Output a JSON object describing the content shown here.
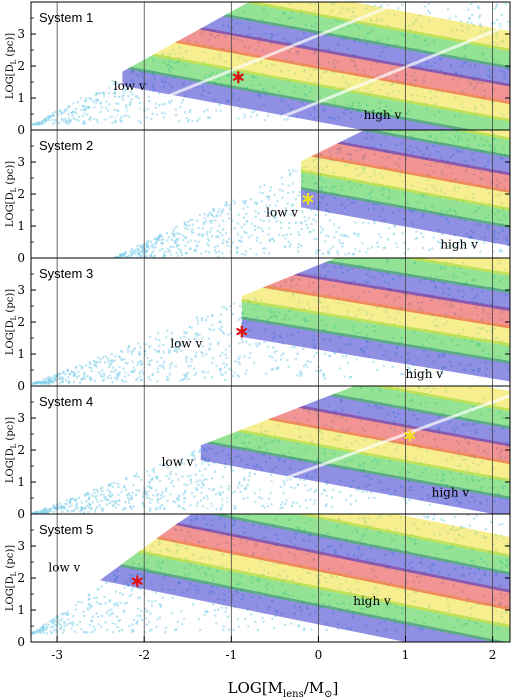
{
  "chart_data": {
    "type": "scatter",
    "xlabel_main": "LOG[M",
    "xlabel_sub": "lens",
    "xlabel_tail": "/M",
    "xlabel_sun": "⊙",
    "xlabel_close": "]",
    "ylabel_main": "LOG[D",
    "ylabel_sub": "L",
    "ylabel_unit": " (pc)]",
    "xlim": [
      -3.3,
      2.2
    ],
    "ylim": [
      0,
      4
    ],
    "x_ticks": [
      "-3",
      "-2",
      "-1",
      "0",
      "1",
      "2"
    ],
    "x_tick_values": [
      -3,
      -2,
      -1,
      0,
      1,
      2
    ],
    "y_ticks": [
      "0",
      "1",
      "2",
      "3"
    ],
    "y_tick_values": [
      0,
      1,
      2,
      3
    ],
    "band_colors": [
      "#1f1fc8",
      "#2ac82a",
      "#f0e020",
      "#e82a2a"
    ],
    "background_color": "#7fd0ea",
    "panels": [
      {
        "title": "System 1",
        "star": {
          "x": -0.92,
          "y": 1.65,
          "color": "#e01010"
        },
        "low_label": "low v",
        "low_pos": {
          "x": -2.35,
          "y": 1.25
        },
        "high_label": "high v",
        "high_pos": {
          "x": 0.52,
          "y": 0.35
        },
        "wedge": {
          "apex_x": -3.3,
          "apex_y": 0.2,
          "slope_bottom": 0.05,
          "slope_top": 1.5
        },
        "band_line": {
          "x0": -2.25,
          "y0": 1.7,
          "slope": -0.5,
          "end_x": 2.2
        },
        "gaps": [
          {
            "x0": -2.6,
            "y0": 0.1,
            "slope": 1.1
          },
          {
            "x0": -0.7,
            "y0": 0.1,
            "slope": 1.1
          }
        ]
      },
      {
        "title": "System 2",
        "star": {
          "x": -0.12,
          "y": 1.85,
          "color": "#f0e020"
        },
        "low_label": "low v",
        "low_pos": {
          "x": -0.6,
          "y": 1.3
        },
        "high_label": "high v",
        "high_pos": {
          "x": 1.4,
          "y": 0.3
        },
        "wedge": {
          "apex_x": -2.4,
          "apex_y": 0.0,
          "slope_bottom": 0.05,
          "slope_top": 1.35
        },
        "band_line": {
          "x0": -0.2,
          "y0": 1.9,
          "slope": -0.5,
          "end_x": 2.2
        },
        "gaps": []
      },
      {
        "title": "System 3",
        "star": {
          "x": -0.88,
          "y": 1.7,
          "color": "#e01010"
        },
        "low_label": "low v",
        "low_pos": {
          "x": -1.7,
          "y": 1.2
        },
        "high_label": "high v",
        "high_pos": {
          "x": 1.0,
          "y": 0.25
        },
        "wedge": {
          "apex_x": -3.3,
          "apex_y": 0.1,
          "slope_bottom": 0.05,
          "slope_top": 1.1
        },
        "band_line": {
          "x0": -0.88,
          "y0": 1.85,
          "slope": -0.45,
          "end_x": 2.2
        },
        "gaps": []
      },
      {
        "title": "System 4",
        "star": {
          "x": 1.05,
          "y": 2.45,
          "color": "#f0e020"
        },
        "low_label": "low v",
        "low_pos": {
          "x": -1.8,
          "y": 1.5
        },
        "high_label": "high v",
        "high_pos": {
          "x": 1.3,
          "y": 0.55
        },
        "wedge": {
          "apex_x": -3.3,
          "apex_y": 0.05,
          "slope_bottom": 0.05,
          "slope_top": 1.05
        },
        "band_line": {
          "x0": -1.35,
          "y0": 2.0,
          "slope": -0.5,
          "end_x": 2.2
        },
        "gaps": [
          {
            "x0": -1.4,
            "y0": 0.1,
            "slope": 1.0
          }
        ]
      },
      {
        "title": "System 5",
        "star": {
          "x": -2.08,
          "y": 1.9,
          "color": "#e01010"
        },
        "low_label": "low v",
        "low_pos": {
          "x": -3.1,
          "y": 2.2
        },
        "high_label": "high v",
        "high_pos": {
          "x": 0.4,
          "y": 1.15
        },
        "wedge": {
          "apex_x": -3.3,
          "apex_y": 0.3,
          "slope_bottom": 0.02,
          "slope_top": 2.0
        },
        "band_line": {
          "x0": -2.6,
          "y0": 2.3,
          "slope": -0.55,
          "end_x": 2.2
        },
        "gaps": []
      }
    ]
  }
}
